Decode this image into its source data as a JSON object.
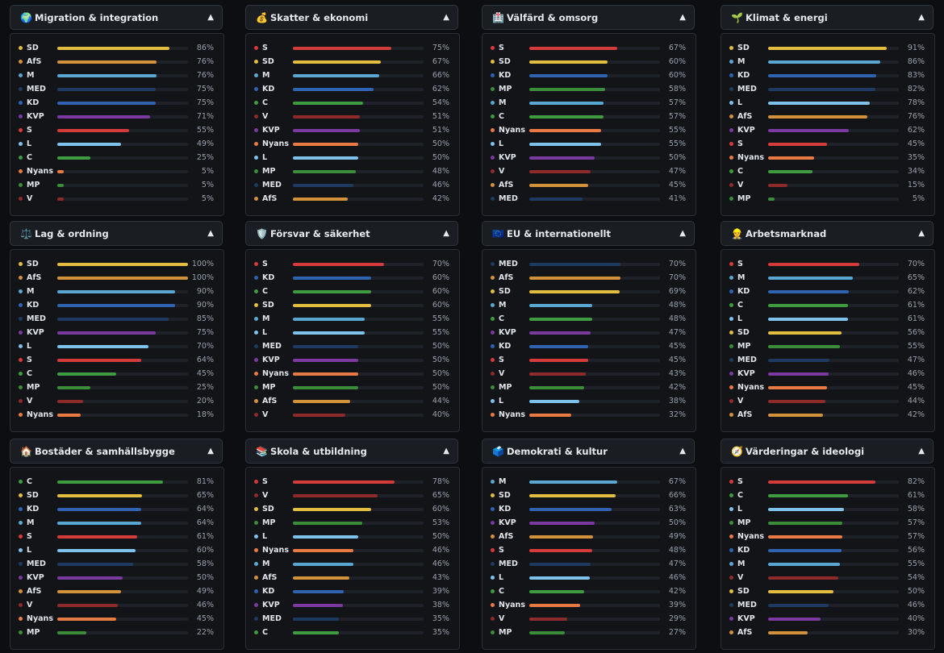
{
  "party_colors": {
    "S": "#d63b3b",
    "SD": "#e2bd3f",
    "M": "#5aa7d1",
    "KD": "#2f63b0",
    "C": "#3f9b3f",
    "V": "#8e2a2a",
    "MP": "#3b8c3b",
    "L": "#7ec1ea",
    "MED": "#1e3a60",
    "AfS": "#d2913b",
    "KVP": "#7b3aa0",
    "Nyans": "#ea7a44"
  },
  "chart_data": [
    {
      "type": "bar",
      "orientation": "horizontal",
      "title": "Migration & integration",
      "icon": "🌍",
      "categories": [
        "SD",
        "AfS",
        "M",
        "MED",
        "KD",
        "KVP",
        "S",
        "L",
        "C",
        "Nyans",
        "MP",
        "V"
      ],
      "values": [
        86,
        76,
        76,
        75,
        75,
        71,
        55,
        49,
        25,
        5,
        5,
        5
      ],
      "xlim": [
        0,
        100
      ]
    },
    {
      "type": "bar",
      "orientation": "horizontal",
      "title": "Skatter & ekonomi",
      "icon": "💰",
      "categories": [
        "S",
        "SD",
        "M",
        "KD",
        "C",
        "V",
        "KVP",
        "Nyans",
        "L",
        "MP",
        "MED",
        "AfS"
      ],
      "values": [
        75,
        67,
        66,
        62,
        54,
        51,
        51,
        50,
        50,
        48,
        46,
        42
      ],
      "xlim": [
        0,
        100
      ]
    },
    {
      "type": "bar",
      "orientation": "horizontal",
      "title": "Välfärd & omsorg",
      "icon": "🏥",
      "categories": [
        "S",
        "SD",
        "KD",
        "MP",
        "M",
        "C",
        "Nyans",
        "L",
        "KVP",
        "V",
        "AfS",
        "MED"
      ],
      "values": [
        67,
        60,
        60,
        58,
        57,
        57,
        55,
        55,
        50,
        47,
        45,
        41
      ],
      "xlim": [
        0,
        100
      ]
    },
    {
      "type": "bar",
      "orientation": "horizontal",
      "title": "Klimat & energi",
      "icon": "🌱",
      "categories": [
        "SD",
        "M",
        "KD",
        "MED",
        "L",
        "AfS",
        "KVP",
        "S",
        "Nyans",
        "C",
        "V",
        "MP"
      ],
      "values": [
        91,
        86,
        83,
        82,
        78,
        76,
        62,
        45,
        35,
        34,
        15,
        5
      ],
      "xlim": [
        0,
        100
      ]
    },
    {
      "type": "bar",
      "orientation": "horizontal",
      "title": "Lag & ordning",
      "icon": "⚖️",
      "categories": [
        "SD",
        "AfS",
        "M",
        "KD",
        "MED",
        "KVP",
        "L",
        "S",
        "C",
        "MP",
        "V",
        "Nyans"
      ],
      "values": [
        100,
        100,
        90,
        90,
        85,
        75,
        70,
        64,
        45,
        25,
        20,
        18
      ],
      "xlim": [
        0,
        100
      ]
    },
    {
      "type": "bar",
      "orientation": "horizontal",
      "title": "Försvar & säkerhet",
      "icon": "🛡️",
      "categories": [
        "S",
        "KD",
        "C",
        "SD",
        "M",
        "L",
        "MED",
        "KVP",
        "Nyans",
        "MP",
        "AfS",
        "V"
      ],
      "values": [
        70,
        60,
        60,
        60,
        55,
        55,
        50,
        50,
        50,
        50,
        44,
        40
      ],
      "xlim": [
        0,
        100
      ]
    },
    {
      "type": "bar",
      "orientation": "horizontal",
      "title": "EU & internationellt",
      "icon": "🇪🇺",
      "categories": [
        "MED",
        "AfS",
        "SD",
        "M",
        "C",
        "KVP",
        "KD",
        "S",
        "V",
        "MP",
        "L",
        "Nyans"
      ],
      "values": [
        70,
        70,
        69,
        48,
        48,
        47,
        45,
        45,
        43,
        42,
        38,
        32
      ],
      "xlim": [
        0,
        100
      ]
    },
    {
      "type": "bar",
      "orientation": "horizontal",
      "title": "Arbetsmarknad",
      "icon": "👷",
      "categories": [
        "S",
        "M",
        "KD",
        "C",
        "L",
        "SD",
        "MP",
        "MED",
        "KVP",
        "Nyans",
        "V",
        "AfS"
      ],
      "values": [
        70,
        65,
        62,
        61,
        61,
        56,
        55,
        47,
        46,
        45,
        44,
        42
      ],
      "xlim": [
        0,
        100
      ]
    },
    {
      "type": "bar",
      "orientation": "horizontal",
      "title": "Bostäder & samhällsbygge",
      "icon": "🏠",
      "categories": [
        "C",
        "SD",
        "KD",
        "M",
        "S",
        "L",
        "MED",
        "KVP",
        "AfS",
        "V",
        "Nyans",
        "MP"
      ],
      "values": [
        81,
        65,
        64,
        64,
        61,
        60,
        58,
        50,
        49,
        46,
        45,
        22
      ],
      "xlim": [
        0,
        100
      ]
    },
    {
      "type": "bar",
      "orientation": "horizontal",
      "title": "Skola & utbildning",
      "icon": "📚",
      "categories": [
        "S",
        "V",
        "SD",
        "MP",
        "L",
        "Nyans",
        "M",
        "AfS",
        "KD",
        "KVP",
        "MED",
        "C"
      ],
      "values": [
        78,
        65,
        60,
        53,
        50,
        46,
        46,
        43,
        39,
        38,
        35,
        35
      ],
      "xlim": [
        0,
        100
      ]
    },
    {
      "type": "bar",
      "orientation": "horizontal",
      "title": "Demokrati & kultur",
      "icon": "🗳️",
      "categories": [
        "M",
        "SD",
        "KD",
        "KVP",
        "AfS",
        "S",
        "MED",
        "L",
        "C",
        "Nyans",
        "V",
        "MP"
      ],
      "values": [
        67,
        66,
        63,
        50,
        49,
        48,
        47,
        46,
        42,
        39,
        29,
        27
      ],
      "xlim": [
        0,
        100
      ]
    },
    {
      "type": "bar",
      "orientation": "horizontal",
      "title": "Värderingar & ideologi",
      "icon": "🧭",
      "categories": [
        "S",
        "C",
        "L",
        "MP",
        "Nyans",
        "KD",
        "M",
        "V",
        "SD",
        "MED",
        "KVP",
        "AfS"
      ],
      "values": [
        82,
        61,
        58,
        57,
        57,
        56,
        55,
        54,
        50,
        46,
        40,
        30
      ],
      "xlim": [
        0,
        100
      ]
    }
  ]
}
